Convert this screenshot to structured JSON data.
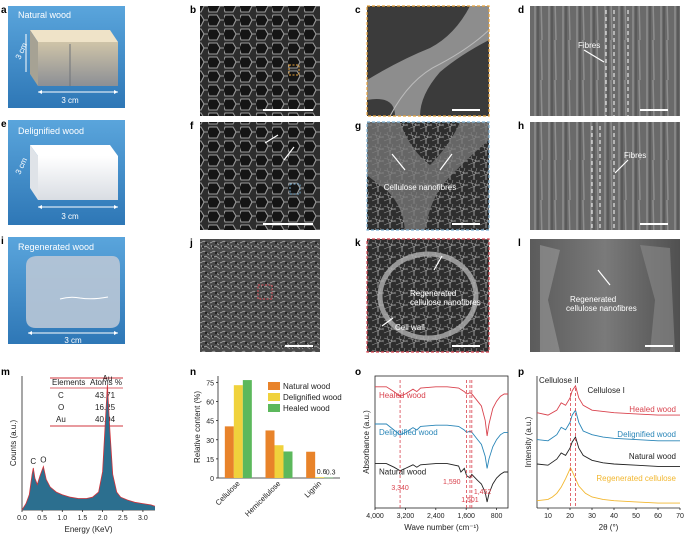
{
  "panel_letters": [
    "a",
    "b",
    "c",
    "d",
    "e",
    "f",
    "g",
    "h",
    "i",
    "j",
    "k",
    "l",
    "m",
    "n",
    "o",
    "p"
  ],
  "photos": {
    "a": {
      "title": "Natural wood",
      "dim_side": "3 cm",
      "dim_bottom": "3 cm"
    },
    "e": {
      "title": "Delignified wood",
      "dim_side": "3 cm",
      "dim_bottom": "3 cm"
    },
    "i": {
      "title": "Regenerated wood",
      "dim_bottom": "3 cm"
    }
  },
  "sem_labels": {
    "d": "Fibres",
    "g": "Cellulose nanofibres",
    "h": "Fibres",
    "k_1": "Regenerated",
    "k_2": "cellulose nanofibres",
    "k_3": "Cell wall",
    "l_1": "Regenerated",
    "l_2": "cellulose nanofibres"
  },
  "colors": {
    "photo_bg": "#3f8fce",
    "sem_dark": "#2a2a2a",
    "box_orange": "#e8a23a",
    "box_blue": "#7fb3d5",
    "box_red": "#d64550",
    "natural": "#e8832a",
    "delignified": "#f0d23c",
    "healed": "#5cb85c",
    "eds_fill": "#2c6f8f",
    "eds_line": "#d0343c",
    "red": "#d9434e",
    "blue": "#2a86b8",
    "black": "#222222",
    "yellow": "#f2b730"
  },
  "eds_table": {
    "col1": "Elements",
    "col2": "Atoms %",
    "rows": [
      {
        "el": "C",
        "val": "43.71"
      },
      {
        "el": "O",
        "val": "16.25"
      },
      {
        "el": "Au",
        "val": "40.04"
      }
    ]
  },
  "chart_data": [
    {
      "panel": "m",
      "type": "area",
      "xlabel": "Energy (KeV)",
      "ylabel": "Counts (a.u.)",
      "xlim": [
        0,
        3.3
      ],
      "xticks": [
        "0.0",
        "0.5",
        "1.0",
        "1.5",
        "2.0",
        "2.5",
        "3.0"
      ],
      "peak_labels": [
        {
          "text": "C",
          "x": 0.28
        },
        {
          "text": "O",
          "x": 0.53
        },
        {
          "text": "Au",
          "x": 2.12
        }
      ],
      "x": [
        0.0,
        0.1,
        0.18,
        0.25,
        0.28,
        0.32,
        0.38,
        0.45,
        0.53,
        0.6,
        0.7,
        0.85,
        1.0,
        1.2,
        1.4,
        1.6,
        1.75,
        1.9,
        2.0,
        2.07,
        2.12,
        2.18,
        2.25,
        2.35,
        2.45,
        2.6,
        2.8,
        3.0,
        3.2,
        3.3
      ],
      "y": [
        0.0,
        0.05,
        0.12,
        0.28,
        0.33,
        0.25,
        0.2,
        0.27,
        0.34,
        0.24,
        0.18,
        0.14,
        0.12,
        0.1,
        0.09,
        0.09,
        0.1,
        0.14,
        0.3,
        0.7,
        0.98,
        0.62,
        0.28,
        0.14,
        0.1,
        0.08,
        0.06,
        0.05,
        0.04,
        0.03
      ]
    },
    {
      "panel": "n",
      "type": "bar",
      "ylabel": "Relative content (%)",
      "ylim": [
        0,
        80
      ],
      "yticks": [
        "0",
        "15",
        "30",
        "45",
        "60",
        "75"
      ],
      "categories": [
        "Cellulose",
        "Hemicellulose",
        "Lignin"
      ],
      "series": [
        {
          "name": "Natural wood",
          "values": [
            40.5,
            37.3,
            20.6
          ]
        },
        {
          "name": "Delignified wood",
          "values": [
            72.8,
            25.7,
            0.6
          ]
        },
        {
          "name": "Healed wood",
          "values": [
            76.8,
            20.8,
            0.3
          ]
        }
      ],
      "data_labels": [
        {
          "text": "0.6",
          "category": 2,
          "series": 1
        },
        {
          "text": "0.3",
          "category": 2,
          "series": 2
        }
      ],
      "legend": "top-right"
    },
    {
      "panel": "o",
      "type": "line",
      "xlabel": "Wave number (cm⁻¹)",
      "ylabel": "Absorbance (a.u.)",
      "xlim": [
        4000,
        500
      ],
      "xticks": [
        "4,000",
        "3,200",
        "2,400",
        "1,600",
        "800"
      ],
      "markers": [
        "3,340",
        "1,590",
        "1,501",
        "1,452"
      ],
      "marker_x": [
        3340,
        1590,
        1501,
        1452
      ],
      "series": [
        {
          "name": "Healed wood",
          "x": [
            4000,
            3700,
            3500,
            3340,
            3200,
            3000,
            2900,
            2800,
            2400,
            2100,
            1800,
            1650,
            1590,
            1500,
            1450,
            1300,
            1200,
            1100,
            1050,
            1000,
            900,
            800,
            700,
            600,
            500
          ],
          "y": [
            0.86,
            0.86,
            0.82,
            0.78,
            0.8,
            0.84,
            0.82,
            0.85,
            0.86,
            0.86,
            0.85,
            0.82,
            0.8,
            0.81,
            0.8,
            0.74,
            0.7,
            0.58,
            0.45,
            0.55,
            0.68,
            0.74,
            0.78,
            0.8,
            0.8
          ]
        },
        {
          "name": "Delignified wood",
          "x": [
            4000,
            3700,
            3500,
            3340,
            3200,
            3000,
            2900,
            2800,
            2400,
            2100,
            1800,
            1650,
            1590,
            1500,
            1450,
            1300,
            1200,
            1100,
            1050,
            1000,
            900,
            800,
            700,
            600,
            500
          ],
          "y": [
            0.55,
            0.55,
            0.5,
            0.46,
            0.48,
            0.52,
            0.5,
            0.53,
            0.54,
            0.54,
            0.53,
            0.5,
            0.48,
            0.49,
            0.48,
            0.42,
            0.38,
            0.28,
            0.18,
            0.26,
            0.36,
            0.42,
            0.46,
            0.48,
            0.48
          ]
        },
        {
          "name": "Natural wood",
          "x": [
            4000,
            3700,
            3500,
            3340,
            3200,
            3000,
            2900,
            2800,
            2400,
            2100,
            1800,
            1740,
            1650,
            1590,
            1501,
            1452,
            1300,
            1200,
            1100,
            1050,
            1000,
            900,
            800,
            700,
            600,
            500
          ],
          "y": [
            0.22,
            0.22,
            0.19,
            0.16,
            0.18,
            0.21,
            0.19,
            0.21,
            0.22,
            0.22,
            0.2,
            0.15,
            0.18,
            0.12,
            0.1,
            0.13,
            0.08,
            0.05,
            -0.02,
            -0.1,
            -0.03,
            0.05,
            0.1,
            0.13,
            0.15,
            0.15
          ]
        }
      ]
    },
    {
      "panel": "p",
      "type": "line",
      "xlabel": "2θ (°)",
      "ylabel": "Intensity (a.u.)",
      "xlim": [
        5,
        70
      ],
      "xticks": [
        "10",
        "20",
        "30",
        "40",
        "50",
        "60",
        "70"
      ],
      "annotations": [
        "Cellulose II",
        "Cellulose I"
      ],
      "marker_x": [
        20.2,
        22.5
      ],
      "series": [
        {
          "name": "Healed wood",
          "x": [
            5,
            10,
            14,
            16,
            18,
            20,
            21,
            22.5,
            24,
            26,
            30,
            35,
            40,
            50,
            60,
            70
          ],
          "y": [
            0.78,
            0.76,
            0.8,
            0.86,
            0.84,
            0.9,
            0.96,
            1.0,
            0.9,
            0.84,
            0.8,
            0.79,
            0.78,
            0.77,
            0.76,
            0.76
          ]
        },
        {
          "name": "Delignified wood",
          "x": [
            5,
            10,
            14,
            16,
            18,
            20,
            21,
            22.5,
            24,
            26,
            30,
            35,
            40,
            50,
            60,
            70
          ],
          "y": [
            0.56,
            0.55,
            0.6,
            0.66,
            0.64,
            0.7,
            0.76,
            0.8,
            0.7,
            0.63,
            0.6,
            0.58,
            0.57,
            0.56,
            0.55,
            0.55
          ]
        },
        {
          "name": "Natural wood",
          "x": [
            5,
            10,
            14,
            16,
            18,
            20,
            21,
            22.5,
            24,
            26,
            30,
            35,
            40,
            50,
            60,
            70
          ],
          "y": [
            0.36,
            0.35,
            0.4,
            0.45,
            0.43,
            0.49,
            0.54,
            0.58,
            0.49,
            0.43,
            0.39,
            0.37,
            0.36,
            0.35,
            0.34,
            0.34
          ]
        },
        {
          "name": "Regenerated cellulose",
          "x": [
            5,
            10,
            12,
            14,
            16,
            18,
            20,
            20.2,
            21,
            22,
            24,
            27,
            30,
            35,
            40,
            50,
            60,
            70
          ],
          "y": [
            0.06,
            0.07,
            0.09,
            0.12,
            0.17,
            0.24,
            0.32,
            0.33,
            0.3,
            0.26,
            0.18,
            0.12,
            0.09,
            0.07,
            0.06,
            0.05,
            0.04,
            0.04
          ]
        }
      ]
    }
  ]
}
